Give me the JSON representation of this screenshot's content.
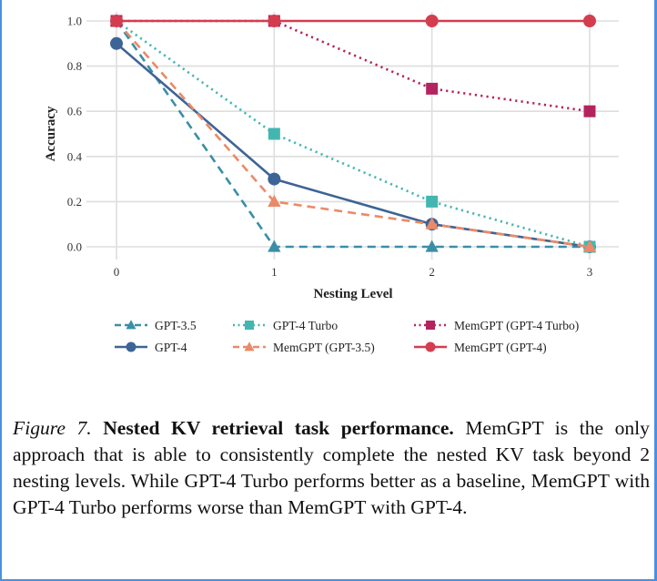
{
  "chart_data": {
    "type": "line",
    "xlabel": "Nesting Level",
    "ylabel": "Accuracy",
    "x": [
      0,
      1,
      2,
      3
    ],
    "x_ticks": [
      "0",
      "1",
      "2",
      "3"
    ],
    "y_ticks": [
      "0.0",
      "0.2",
      "0.4",
      "0.6",
      "0.8",
      "1.0"
    ],
    "xlim": [
      0,
      3
    ],
    "ylim": [
      0,
      1
    ],
    "grid": true,
    "legend_position": "bottom",
    "series": [
      {
        "name": "GPT-3.5",
        "values": [
          1.0,
          0.0,
          0.0,
          0.0
        ],
        "color": "#3a8fa6",
        "dash": "dashed",
        "marker": "triangle"
      },
      {
        "name": "GPT-4",
        "values": [
          0.9,
          0.3,
          0.1,
          0.0
        ],
        "color": "#3d6496",
        "dash": "solid",
        "marker": "circle"
      },
      {
        "name": "GPT-4 Turbo",
        "values": [
          1.0,
          0.5,
          0.2,
          0.0
        ],
        "color": "#44b6b0",
        "dash": "dotted",
        "marker": "square"
      },
      {
        "name": "MemGPT (GPT-3.5)",
        "values": [
          1.0,
          0.2,
          0.1,
          0.0
        ],
        "color": "#ea8a68",
        "dash": "dashed",
        "marker": "triangle"
      },
      {
        "name": "MemGPT (GPT-4 Turbo)",
        "values": [
          1.0,
          1.0,
          0.7,
          0.6
        ],
        "color": "#b3245e",
        "dash": "dotted",
        "marker": "square"
      },
      {
        "name": "MemGPT (GPT-4)",
        "values": [
          1.0,
          1.0,
          1.0,
          1.0
        ],
        "color": "#d43d4f",
        "dash": "solid",
        "marker": "circle"
      }
    ]
  },
  "caption": {
    "figure_label": "Figure 7.",
    "title": "Nested KV retrieval task performance.",
    "body": " MemGPT is the only approach that is able to consistently complete the nested KV task beyond 2 nesting levels.  While GPT-4 Turbo performs better as a baseline, MemGPT with GPT-4 Turbo performs worse than MemGPT with GPT-4."
  }
}
